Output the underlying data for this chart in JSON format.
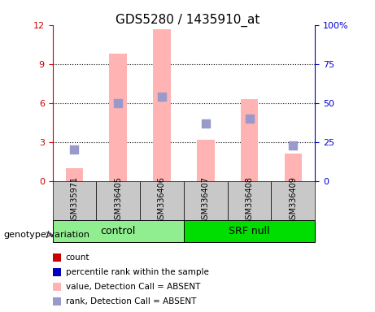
{
  "title": "GDS5280 / 1435910_at",
  "samples": [
    "GSM335971",
    "GSM336405",
    "GSM336406",
    "GSM336407",
    "GSM336408",
    "GSM336409"
  ],
  "bar_values": [
    1.0,
    9.8,
    11.7,
    3.2,
    6.3,
    2.1
  ],
  "rank_squares_pct": [
    20,
    50,
    54,
    37,
    40,
    23
  ],
  "bar_color": "#FFB3B3",
  "rank_color": "#9999CC",
  "left_ylim": [
    0,
    12
  ],
  "right_ylim": [
    0,
    100
  ],
  "left_yticks": [
    0,
    3,
    6,
    9,
    12
  ],
  "right_yticks": [
    0,
    25,
    50,
    75,
    100
  ],
  "right_yticklabels": [
    "0",
    "25",
    "50",
    "75",
    "100%"
  ],
  "left_axis_color": "#CC0000",
  "right_axis_color": "#0000CC",
  "grid_color": "black",
  "plot_bg": "#FFFFFF",
  "legend_items": [
    {
      "label": "count",
      "color": "#CC0000"
    },
    {
      "label": "percentile rank within the sample",
      "color": "#0000BB"
    },
    {
      "label": "value, Detection Call = ABSENT",
      "color": "#FFB3B3"
    },
    {
      "label": "rank, Detection Call = ABSENT",
      "color": "#9999CC"
    }
  ],
  "genotype_label": "genotype/variation",
  "bar_width": 0.4,
  "square_size": 60
}
